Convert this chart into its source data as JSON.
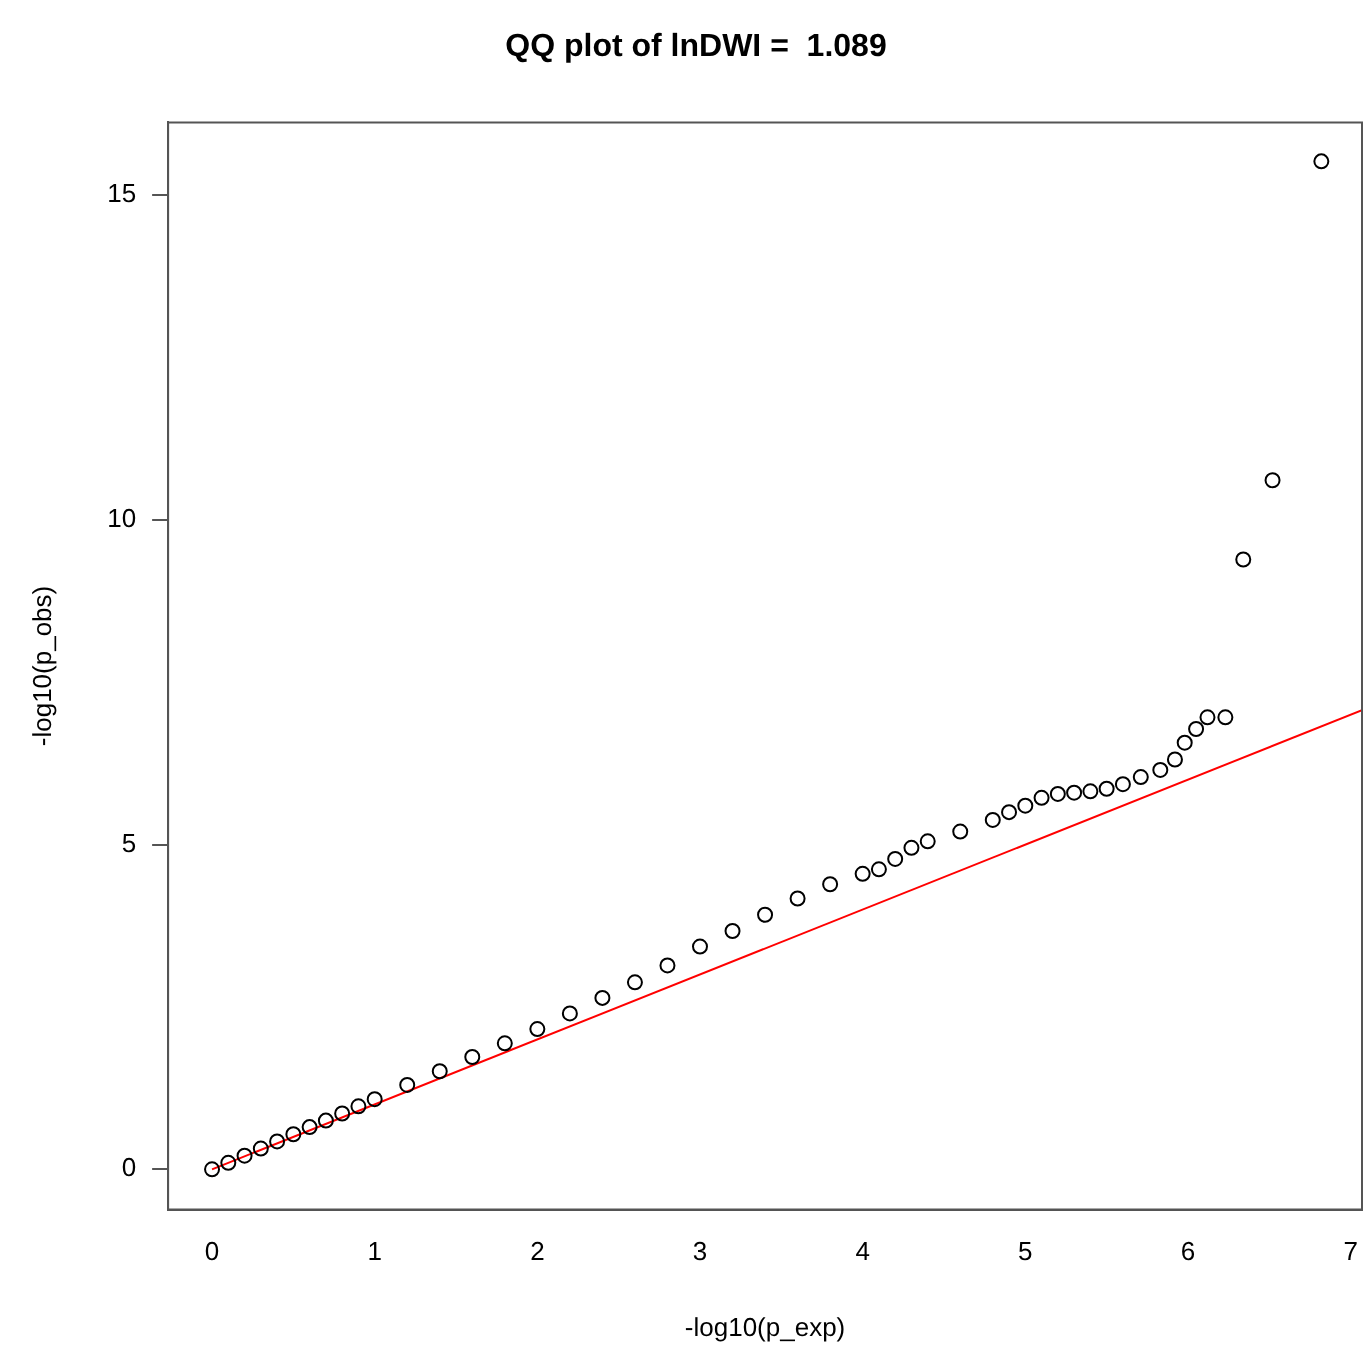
{
  "chart_data": {
    "type": "scatter",
    "title": "QQ plot of lnDWI =  1.089",
    "xlabel": "-log10(p_exp)",
    "ylabel": "-log10(p_obs)",
    "xlim": [
      -0.27,
      7.07
    ],
    "ylim": [
      -0.62,
      16.12
    ],
    "xticks": [
      0,
      1,
      2,
      3,
      4,
      5,
      6,
      7
    ],
    "yticks": [
      0,
      5,
      10,
      15
    ],
    "grid": false,
    "legend": false,
    "series": [
      {
        "type": "scatter",
        "color": "#000000",
        "marker": "circle",
        "x": [
          0,
          0.1,
          0.2,
          0.3,
          0.4,
          0.5,
          0.6,
          0.7,
          0.8,
          0.9,
          1.0,
          1.2,
          1.4,
          1.6,
          1.8,
          2.0,
          2.2,
          2.4,
          2.6,
          2.8,
          3.0,
          3.2,
          3.4,
          3.6,
          3.8,
          4.0,
          4.1,
          4.2,
          4.3,
          4.4,
          4.6,
          4.8,
          4.9,
          5.0,
          5.1,
          5.2,
          5.3,
          5.4,
          5.5,
          5.6,
          5.71,
          5.83,
          5.92,
          5.98,
          6.05,
          6.12,
          6.23,
          6.34,
          6.52,
          6.82
        ],
        "values": [
          0,
          0.1,
          0.21,
          0.32,
          0.43,
          0.54,
          0.65,
          0.75,
          0.86,
          0.97,
          1.08,
          1.3,
          1.51,
          1.73,
          1.94,
          2.16,
          2.4,
          2.64,
          2.88,
          3.14,
          3.43,
          3.67,
          3.92,
          4.17,
          4.39,
          4.55,
          4.62,
          4.78,
          4.95,
          5.05,
          5.2,
          5.38,
          5.5,
          5.6,
          5.72,
          5.78,
          5.8,
          5.82,
          5.86,
          5.93,
          6.04,
          6.15,
          6.31,
          6.57,
          6.78,
          6.96,
          6.96,
          9.39,
          10.61,
          15.52
        ]
      },
      {
        "type": "line",
        "color": "#ff0000",
        "marker": "none",
        "line_style": "solid",
        "x": [
          0,
          7.07
        ],
        "values": [
          0,
          7.07
        ]
      }
    ]
  }
}
